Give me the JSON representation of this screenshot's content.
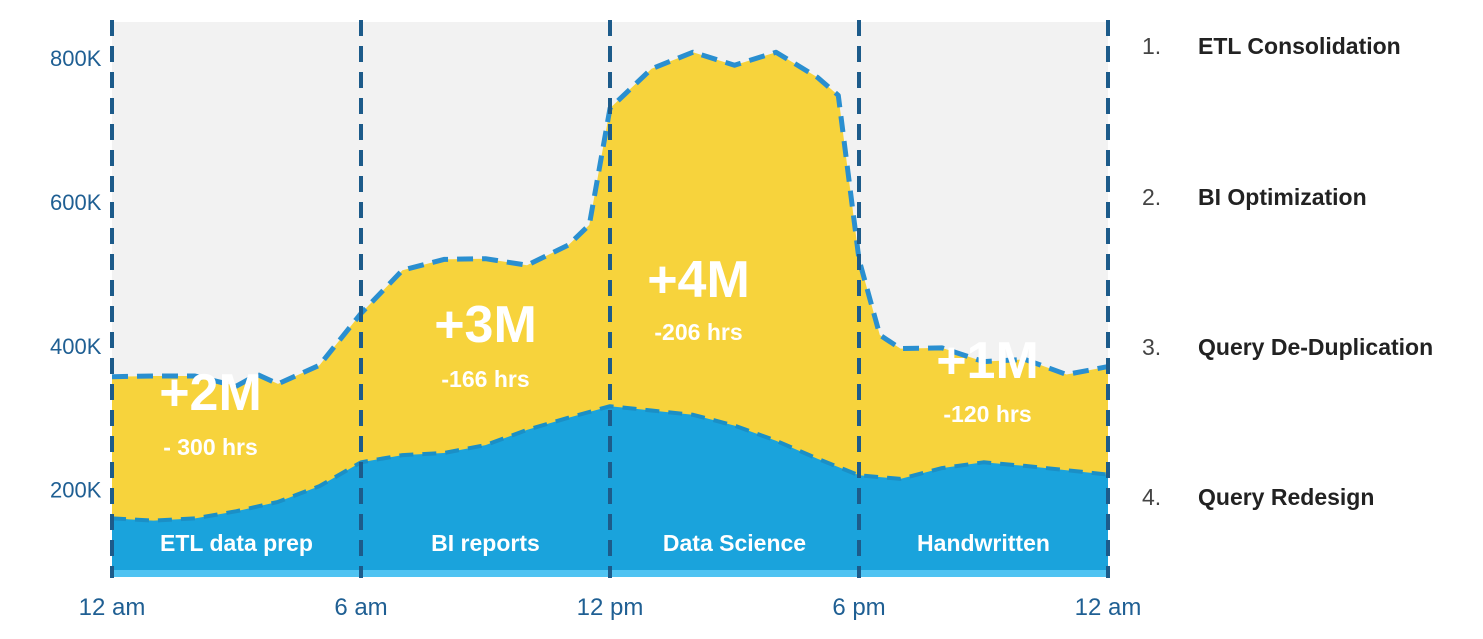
{
  "chart_data": {
    "type": "area",
    "x_ticks": [
      "12 am",
      "6 am",
      "12 pm",
      "6 pm",
      "12 am"
    ],
    "y_ticks": [
      {
        "value": 200000,
        "label": "200K"
      },
      {
        "value": 400000,
        "label": "400K"
      },
      {
        "value": 600000,
        "label": "600K"
      },
      {
        "value": 800000,
        "label": "800K"
      }
    ],
    "xlim": [
      0,
      24
    ],
    "ylim": [
      80000,
      850000
    ],
    "grid": false,
    "series": [
      {
        "color": "#1aa3dc",
        "x": [
          0,
          1,
          2,
          3,
          4,
          5,
          6,
          7,
          8,
          9,
          10,
          11,
          12,
          13,
          14,
          15,
          16,
          17,
          18,
          19,
          20,
          21,
          22,
          23,
          24
        ],
        "values": [
          160000,
          157000,
          160000,
          170000,
          183000,
          205000,
          238000,
          248000,
          251000,
          262000,
          283000,
          300000,
          316000,
          310000,
          304000,
          289000,
          268000,
          243000,
          220000,
          215000,
          230000,
          238000,
          233000,
          227000,
          221000
        ]
      },
      {
        "color": "#f7d33c",
        "x": [
          0,
          1,
          2,
          3,
          3.5,
          4,
          5,
          6,
          7,
          8,
          9,
          10,
          11,
          11.5,
          12,
          13,
          14,
          15,
          16,
          17,
          17.5,
          18,
          18.5,
          19,
          20,
          21,
          22,
          23,
          24
        ],
        "values": [
          357000,
          358000,
          358000,
          344000,
          360000,
          347000,
          373000,
          445000,
          505000,
          520000,
          521000,
          512000,
          540000,
          568000,
          730000,
          785000,
          808000,
          790000,
          808000,
          773000,
          748000,
          520000,
          415000,
          396000,
          397000,
          378000,
          381000,
          360000,
          371000
        ]
      }
    ],
    "segments": [
      {
        "label": "ETL data prep",
        "gain": "+2M",
        "hours": "- 300 hrs",
        "start": 0,
        "end": 6
      },
      {
        "label": "BI reports",
        "gain": "+3M",
        "hours": "-166 hrs",
        "start": 6,
        "end": 12
      },
      {
        "label": "Data Science",
        "gain": "+4M",
        "hours": "-206 hrs",
        "start": 12,
        "end": 18
      },
      {
        "label": "Handwritten",
        "gain": "+1M",
        "hours": "-120 hrs",
        "start": 18,
        "end": 24
      }
    ],
    "legend": [
      {
        "num": "1.",
        "label": "ETL Consolidation"
      },
      {
        "num": "2.",
        "label": "BI Optimization"
      },
      {
        "num": "3.",
        "label": "Query De-Duplication"
      },
      {
        "num": "4.",
        "label": "Query Redesign"
      }
    ],
    "colors": {
      "background": "#f2f2f2",
      "blue_area": "#1aa3dc",
      "yellow_area": "#f7d33c",
      "dashed_line": "#2a8fd0",
      "divider": "#1d5b8a",
      "tick_text": "#1f5f93"
    }
  }
}
